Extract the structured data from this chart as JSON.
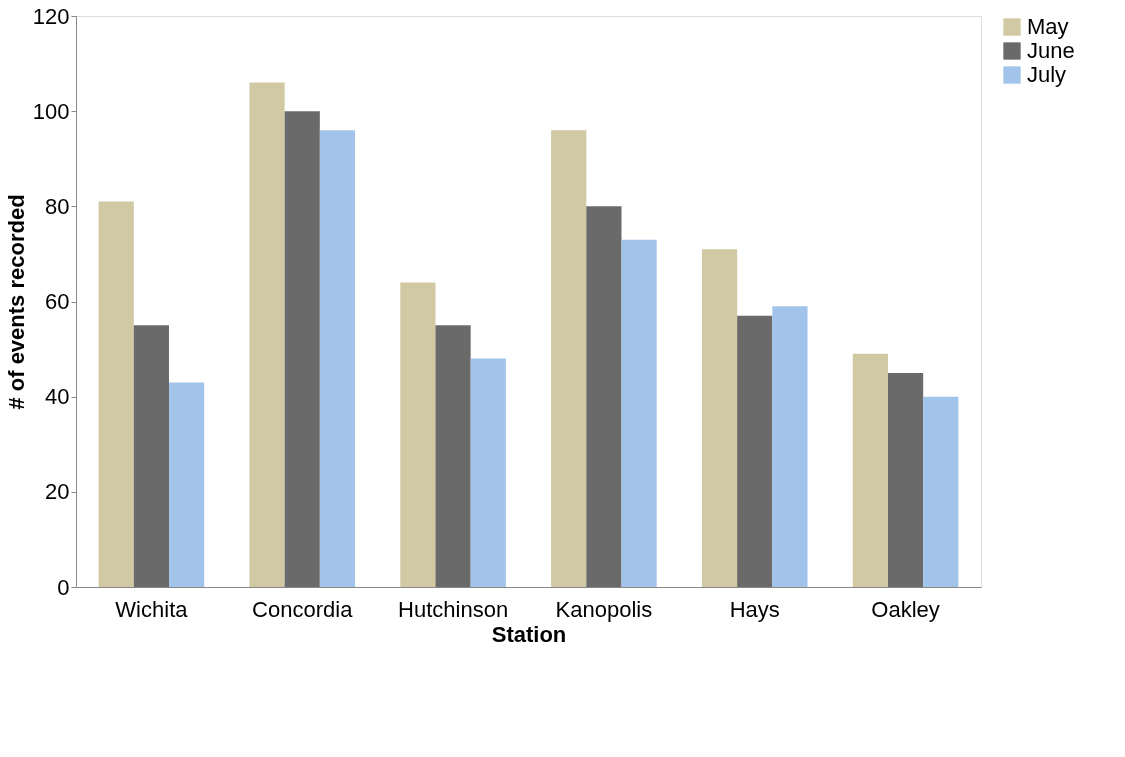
{
  "chart_data": {
    "type": "bar",
    "xlabel": "Station",
    "ylabel": "# of events recorded",
    "categories": [
      "Wichita",
      "Concordia",
      "Hutchinson",
      "Kanopolis",
      "Hays",
      "Oakley"
    ],
    "series": [
      {
        "name": "May",
        "color": "#d0c9a4",
        "values": [
          81,
          106,
          64,
          96,
          71,
          49
        ]
      },
      {
        "name": "June",
        "color": "#6a6a6a",
        "values": [
          55,
          100,
          55,
          80,
          57,
          45
        ]
      },
      {
        "name": "July",
        "color": "#a3c4ea",
        "values": [
          43,
          96,
          48,
          73,
          59,
          40
        ]
      }
    ],
    "ylim": [
      0,
      120
    ],
    "yticks": [
      0,
      20,
      40,
      60,
      80,
      100,
      120
    ],
    "grid": false,
    "legend": "right"
  }
}
